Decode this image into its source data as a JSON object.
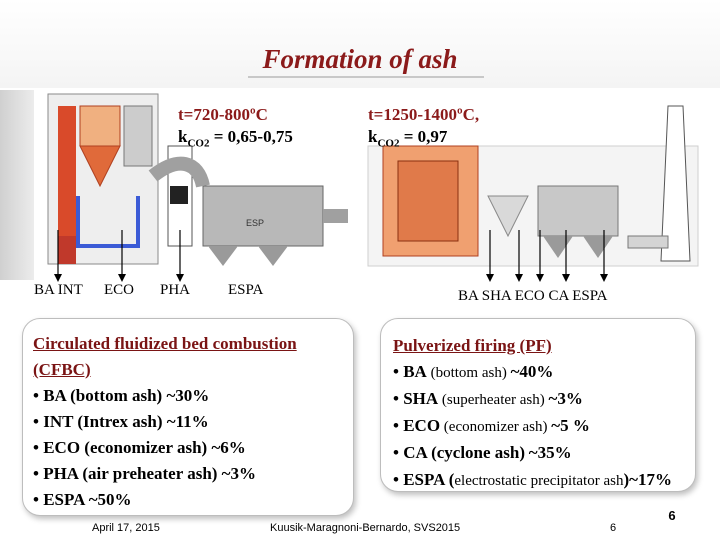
{
  "title": "Formation of ash",
  "cfbc_temp": {
    "t_label": "t=720-800ºC",
    "k_prefix": "k",
    "k_sub": "CO2",
    "k_value": " = 0,65-0,75"
  },
  "pf_temp": {
    "t_label": "t=1250-1400ºC,",
    "k_prefix": "k",
    "k_sub": "CO2",
    "k_value": " = 0,97"
  },
  "cfbc_ash_points": [
    "BA INT",
    "ECO",
    "PHA",
    "ESPA"
  ],
  "pf_ash_points": "BA SHA ECO CA ESPA",
  "esp_label": "ESP",
  "cfbc_panel": {
    "heading": "Circulated fluidized bed combustion (CFBC)",
    "items": [
      "• BA (bottom ash) ~30%",
      "• INT (Intrex ash) ~11%",
      "• ECO (economizer ash) ~6%",
      "• PHA (air preheater ash) ~3%",
      "• ESPA ~50%"
    ]
  },
  "pf_panel": {
    "heading": "Pulverized firing (PF)",
    "items": [
      {
        "abbr": "• BA",
        "desc": " (bottom ash) ",
        "pct": "~40%"
      },
      {
        "abbr": "• SHA",
        "desc": " (superheater ash) ",
        "pct": "~3%"
      },
      {
        "abbr": "• ECO",
        "desc": " (economizer ash) ",
        "pct": "~5 %"
      },
      {
        "abbr": "• CA (cyclone ash)",
        "desc": " ",
        "pct": "~35%"
      },
      {
        "abbr": "• ESPA (",
        "desc": "electrostatic precipitator ash",
        "pct": ")~17%"
      }
    ]
  },
  "footer": {
    "date": "April 17, 2015",
    "authors": "Kuusik-Maragnoni-Bernardo, SVS2015",
    "page_number": "6",
    "slide_number": "6"
  },
  "colors": {
    "title": "#8b1a1a",
    "heading": "#7a1414",
    "boiler_red": "#d94a2a",
    "pipe_blue": "#3b5bd6",
    "equipment_gray": "#9e9e9e"
  }
}
